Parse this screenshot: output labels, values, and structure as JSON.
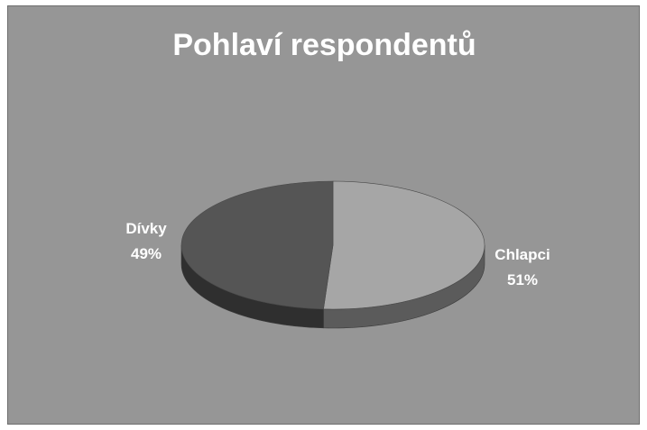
{
  "chart_data": {
    "type": "pie",
    "title": "Pohlaví respondentů",
    "style": "3d",
    "slices": [
      {
        "label": "Chlapci",
        "value": 51,
        "percent_label": "51%",
        "color": "#a6a6a6"
      },
      {
        "label": "Dívky",
        "value": 49,
        "percent_label": "49%",
        "color": "#555555"
      }
    ],
    "background": "#969696",
    "legend": "none"
  }
}
